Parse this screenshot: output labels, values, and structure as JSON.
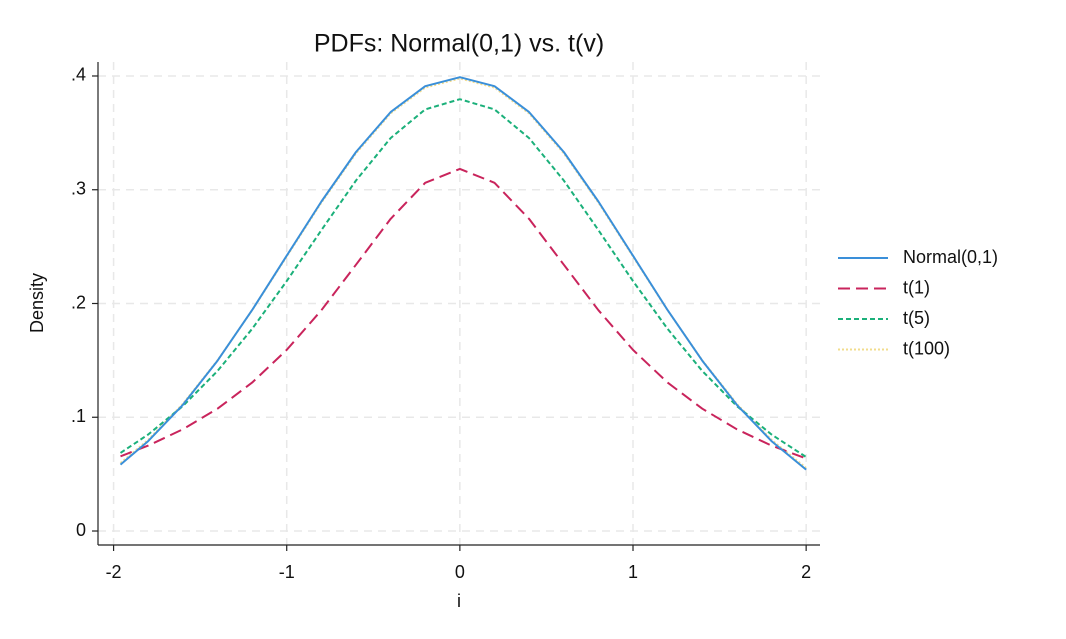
{
  "chart_data": {
    "type": "line",
    "title": "PDFs: Normal(0,1) vs. t(v)",
    "xlabel": "i",
    "ylabel": "Density",
    "x": [
      -1.96,
      -1.8,
      -1.6,
      -1.4,
      -1.2,
      -1.0,
      -0.8,
      -0.6,
      -0.4,
      -0.2,
      0,
      0.2,
      0.4,
      0.6,
      0.8,
      1.0,
      1.2,
      1.4,
      1.6,
      1.8,
      2.0
    ],
    "series": [
      {
        "name": "Normal(0,1)",
        "color": "#3a8fd9",
        "style": "solid",
        "values": [
          0.0584,
          0.079,
          0.1109,
          0.1497,
          0.1942,
          0.242,
          0.2897,
          0.3332,
          0.3683,
          0.391,
          0.3989,
          0.391,
          0.3683,
          0.3332,
          0.2897,
          0.242,
          0.1942,
          0.1497,
          0.1109,
          0.079,
          0.054
        ]
      },
      {
        "name": "t(1)",
        "color": "#c9245c",
        "style": "dashed",
        "values": [
          0.0657,
          0.0751,
          0.0894,
          0.1075,
          0.1305,
          0.1592,
          0.1941,
          0.2341,
          0.2744,
          0.3061,
          0.3183,
          0.3061,
          0.2744,
          0.2341,
          0.1941,
          0.1592,
          0.1305,
          0.1075,
          0.0894,
          0.0751,
          0.0637
        ]
      },
      {
        "name": "t(5)",
        "color": "#1bb07a",
        "style": "shortdash",
        "values": [
          0.0687,
          0.0848,
          0.1098,
          0.1407,
          0.1777,
          0.2197,
          0.2645,
          0.3081,
          0.3454,
          0.3706,
          0.3796,
          0.3706,
          0.3454,
          0.3081,
          0.2645,
          0.2197,
          0.1777,
          0.1407,
          0.1098,
          0.0848,
          0.0651
        ]
      },
      {
        "name": "t(100)",
        "color": "#f2dc8c",
        "style": "dotted",
        "values": [
          0.0598,
          0.0802,
          0.1117,
          0.15,
          0.194,
          0.2413,
          0.2887,
          0.332,
          0.3671,
          0.3898,
          0.3979,
          0.3898,
          0.3671,
          0.332,
          0.2887,
          0.2413,
          0.194,
          0.15,
          0.1117,
          0.0802,
          0.0555
        ]
      }
    ],
    "xlim": [
      -2.09,
      2.08
    ],
    "ylim": [
      -0.0123,
      0.4123
    ],
    "xticks": [
      -2,
      -1,
      0,
      1,
      2
    ],
    "yticks": [
      0,
      {
        "value": 0.1,
        "label": ".1"
      },
      {
        "value": 0.2,
        "label": ".2"
      },
      {
        "value": 0.3,
        "label": ".3"
      },
      {
        "value": 0.4,
        "label": ".4"
      }
    ],
    "grid": true,
    "legend": "right"
  }
}
